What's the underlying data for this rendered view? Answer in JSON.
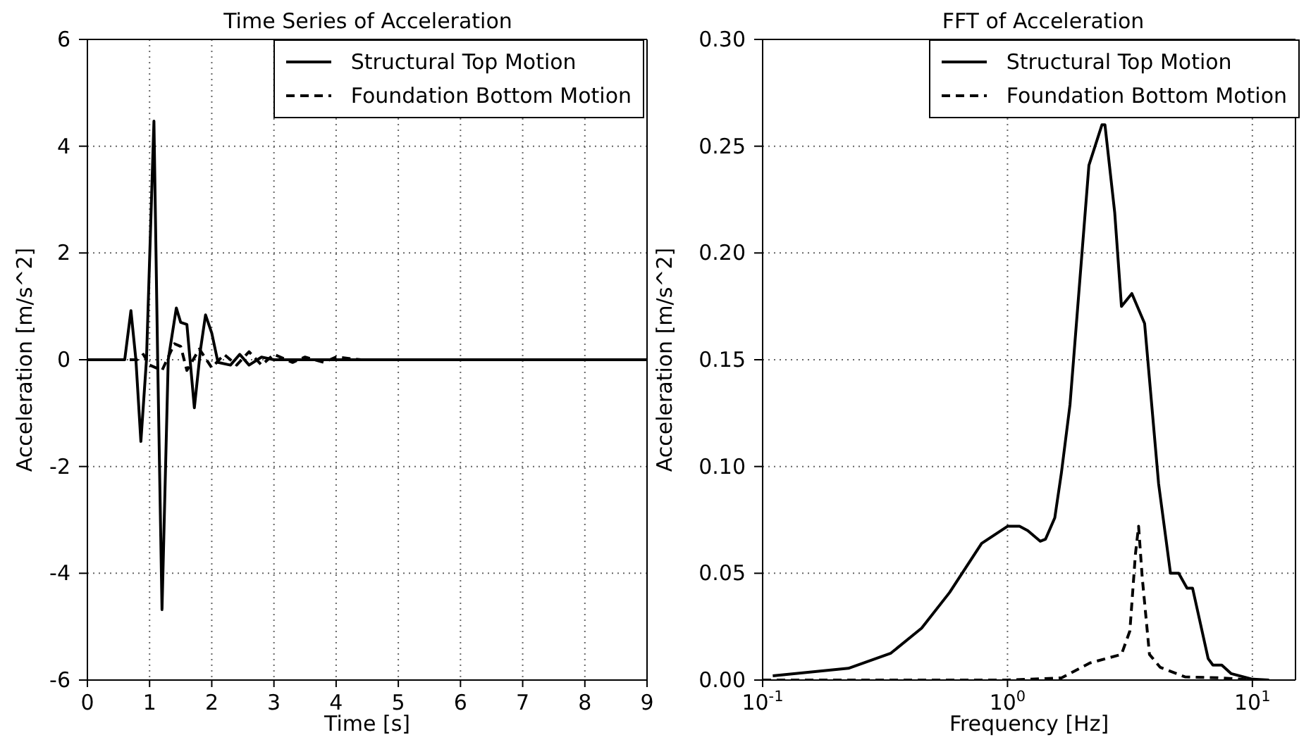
{
  "chart_data": [
    {
      "type": "line",
      "title": "Time Series of Acceleration",
      "xlabel": "Time [s]",
      "ylabel": "Acceleration [m/s^2]",
      "xlim": [
        0,
        9
      ],
      "xticks": [
        0,
        1,
        2,
        3,
        4,
        5,
        6,
        7,
        8,
        9
      ],
      "ylim": [
        -6,
        6
      ],
      "yticks": [
        -6,
        -4,
        -2,
        0,
        2,
        4,
        6
      ],
      "grid": true,
      "legend": "top right",
      "marker": "none",
      "series": [
        {
          "name": "Structural Top Motion",
          "color": "#000000",
          "line_style": "solid",
          "x": [
            0,
            0.6,
            0.7,
            0.78,
            0.86,
            0.95,
            1.07,
            1.13,
            1.2,
            1.3,
            1.43,
            1.5,
            1.6,
            1.72,
            1.82,
            1.9,
            2.0,
            2.1,
            2.3,
            2.45,
            2.6,
            2.8,
            3.0,
            9
          ],
          "values": [
            0,
            0,
            0.92,
            0,
            -1.53,
            0,
            4.47,
            0,
            -4.68,
            0,
            0.97,
            0.7,
            0.66,
            -0.9,
            0.2,
            0.84,
            0.5,
            -0.05,
            -0.1,
            0.1,
            -0.1,
            0.05,
            0,
            0
          ]
        },
        {
          "name": "Foundation Bottom Motion",
          "color": "#000000",
          "line_style": "dashed",
          "x": [
            0,
            0.8,
            0.9,
            1.0,
            1.2,
            1.4,
            1.5,
            1.6,
            1.8,
            2.0,
            2.2,
            2.4,
            2.6,
            2.8,
            3.0,
            3.3,
            3.5,
            3.8,
            4.0,
            4.4,
            5.0,
            9
          ],
          "values": [
            0,
            0,
            0.1,
            -0.1,
            -0.2,
            0.3,
            0.25,
            -0.2,
            0.2,
            -0.15,
            0.1,
            -0.1,
            0.15,
            -0.1,
            0.1,
            -0.05,
            0.05,
            -0.05,
            0.05,
            0,
            0,
            0
          ]
        }
      ]
    },
    {
      "type": "line",
      "title": "FFT of Acceleration",
      "xlabel": "Frequency [Hz]",
      "ylabel": "Acceleration [m/s^2]",
      "log": "x",
      "xlim": [
        0.1,
        15
      ],
      "xticks": [
        {
          "value": 0.1,
          "label": "10$^{-1}$"
        },
        {
          "value": 1,
          "label": "10$^{0}$"
        },
        {
          "value": 10,
          "label": "10$^{1}$"
        }
      ],
      "ylim": [
        0,
        0.3
      ],
      "yticks": [
        {
          "value": 0,
          "label": "0.00"
        },
        {
          "value": 0.05,
          "label": "0.05"
        },
        {
          "value": 0.1,
          "label": "0.10"
        },
        {
          "value": 0.15,
          "label": "0.15"
        },
        {
          "value": 0.2,
          "label": "0.20"
        },
        {
          "value": 0.25,
          "label": "0.25"
        },
        {
          "value": 0.3,
          "label": "0.30"
        }
      ],
      "grid": true,
      "legend": "top right",
      "marker": "none",
      "series": [
        {
          "name": "Structural Top Motion",
          "color": "#000000",
          "line_style": "solid",
          "x": [
            0.11,
            0.224,
            0.334,
            0.446,
            0.58,
            0.784,
            1.0,
            1.12,
            1.21,
            1.36,
            1.43,
            1.56,
            1.66,
            1.8,
            2.15,
            2.43,
            2.5,
            2.74,
            2.92,
            3.22,
            3.63,
            4.14,
            4.63,
            5.0,
            5.41,
            5.7,
            6.6,
            6.9,
            7.5,
            8.2,
            9.9,
            11.7
          ],
          "values": [
            0.002,
            0.0055,
            0.0126,
            0.0243,
            0.041,
            0.064,
            0.072,
            0.072,
            0.07,
            0.065,
            0.066,
            0.076,
            0.097,
            0.129,
            0.241,
            0.26,
            0.26,
            0.219,
            0.175,
            0.181,
            0.167,
            0.092,
            0.05,
            0.05,
            0.043,
            0.043,
            0.01,
            0.007,
            0.007,
            0.003,
            0.0005,
            0
          ]
        },
        {
          "name": "Foundation Bottom Motion",
          "color": "#000000",
          "line_style": "dashed",
          "x": [
            0.1,
            1.0,
            1.66,
            2.17,
            2.92,
            3.16,
            3.33,
            3.43,
            3.55,
            3.8,
            4.2,
            5.3,
            7.5,
            10
          ],
          "values": [
            0,
            0,
            0.001,
            0.008,
            0.012,
            0.023,
            0.059,
            0.072,
            0.048,
            0.012,
            0.006,
            0.0015,
            0.001,
            0
          ]
        }
      ]
    }
  ]
}
